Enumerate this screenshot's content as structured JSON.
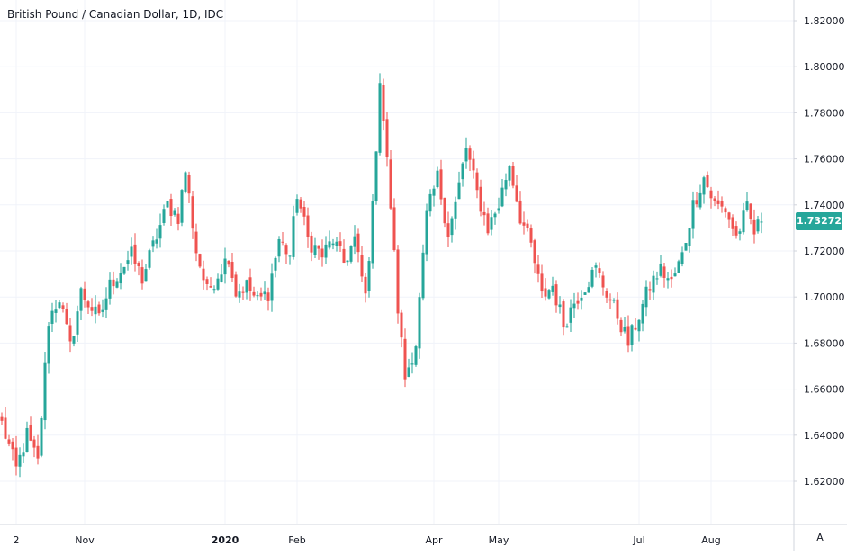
{
  "title": "British Pound / Canadian Dollar, 1D, IDC",
  "last_price_label": "1.73272",
  "auto_scale_label": "A",
  "colors": {
    "up": "#26a69a",
    "down": "#ef5350",
    "grid": "#f0f3fa",
    "axis_text": "#131722",
    "axis_line": "#d1d4dc"
  },
  "chart_data": {
    "type": "candlestick",
    "title": "British Pound / Canadian Dollar, 1D, IDC",
    "y_ticks": [
      "1.82000",
      "1.80000",
      "1.78000",
      "1.76000",
      "1.74000",
      "1.72000",
      "1.70000",
      "1.68000",
      "1.66000",
      "1.64000",
      "1.62000"
    ],
    "ylim": [
      1.6,
      1.825
    ],
    "x_labels": [
      {
        "label": "2",
        "bar": 4
      },
      {
        "label": "Nov",
        "bar": 23
      },
      {
        "label": "2020",
        "bar": 62
      },
      {
        "label": "Feb",
        "bar": 82
      },
      {
        "label": "Apr",
        "bar": 120
      },
      {
        "label": "May",
        "bar": 138
      },
      {
        "label": "Jul",
        "bar": 177
      },
      {
        "label": "Aug",
        "bar": 197
      }
    ],
    "grid": true,
    "last_price": 1.73272,
    "waypoints": [
      [
        0,
        1.645
      ],
      [
        4,
        1.625
      ],
      [
        7,
        1.64
      ],
      [
        10,
        1.628
      ],
      [
        13,
        1.69
      ],
      [
        16,
        1.7
      ],
      [
        19,
        1.678
      ],
      [
        22,
        1.702
      ],
      [
        25,
        1.695
      ],
      [
        27,
        1.69
      ],
      [
        30,
        1.705
      ],
      [
        33,
        1.712
      ],
      [
        36,
        1.718
      ],
      [
        39,
        1.708
      ],
      [
        42,
        1.722
      ],
      [
        46,
        1.74
      ],
      [
        49,
        1.735
      ],
      [
        51,
        1.755
      ],
      [
        54,
        1.72
      ],
      [
        57,
        1.702
      ],
      [
        60,
        1.71
      ],
      [
        63,
        1.718
      ],
      [
        65,
        1.702
      ],
      [
        68,
        1.705
      ],
      [
        71,
        1.698
      ],
      [
        74,
        1.702
      ],
      [
        77,
        1.725
      ],
      [
        80,
        1.718
      ],
      [
        82,
        1.745
      ],
      [
        85,
        1.725
      ],
      [
        89,
        1.718
      ],
      [
        92,
        1.725
      ],
      [
        95,
        1.715
      ],
      [
        98,
        1.725
      ],
      [
        101,
        1.7
      ],
      [
        103,
        1.738
      ],
      [
        105,
        1.795
      ],
      [
        108,
        1.74
      ],
      [
        110,
        1.695
      ],
      [
        112,
        1.665
      ],
      [
        115,
        1.68
      ],
      [
        118,
        1.735
      ],
      [
        121,
        1.752
      ],
      [
        124,
        1.728
      ],
      [
        126,
        1.74
      ],
      [
        129,
        1.765
      ],
      [
        132,
        1.745
      ],
      [
        135,
        1.73
      ],
      [
        138,
        1.74
      ],
      [
        141,
        1.758
      ],
      [
        144,
        1.735
      ],
      [
        147,
        1.722
      ],
      [
        150,
        1.7
      ],
      [
        153,
        1.705
      ],
      [
        156,
        1.688
      ],
      [
        159,
        1.698
      ],
      [
        162,
        1.705
      ],
      [
        165,
        1.712
      ],
      [
        168,
        1.702
      ],
      [
        171,
        1.692
      ],
      [
        174,
        1.68
      ],
      [
        177,
        1.692
      ],
      [
        180,
        1.705
      ],
      [
        183,
        1.712
      ],
      [
        186,
        1.706
      ],
      [
        189,
        1.718
      ],
      [
        192,
        1.74
      ],
      [
        195,
        1.752
      ],
      [
        198,
        1.74
      ],
      [
        201,
        1.738
      ],
      [
        204,
        1.726
      ],
      [
        207,
        1.738
      ],
      [
        209,
        1.728
      ],
      [
        211,
        1.733
      ]
    ]
  }
}
